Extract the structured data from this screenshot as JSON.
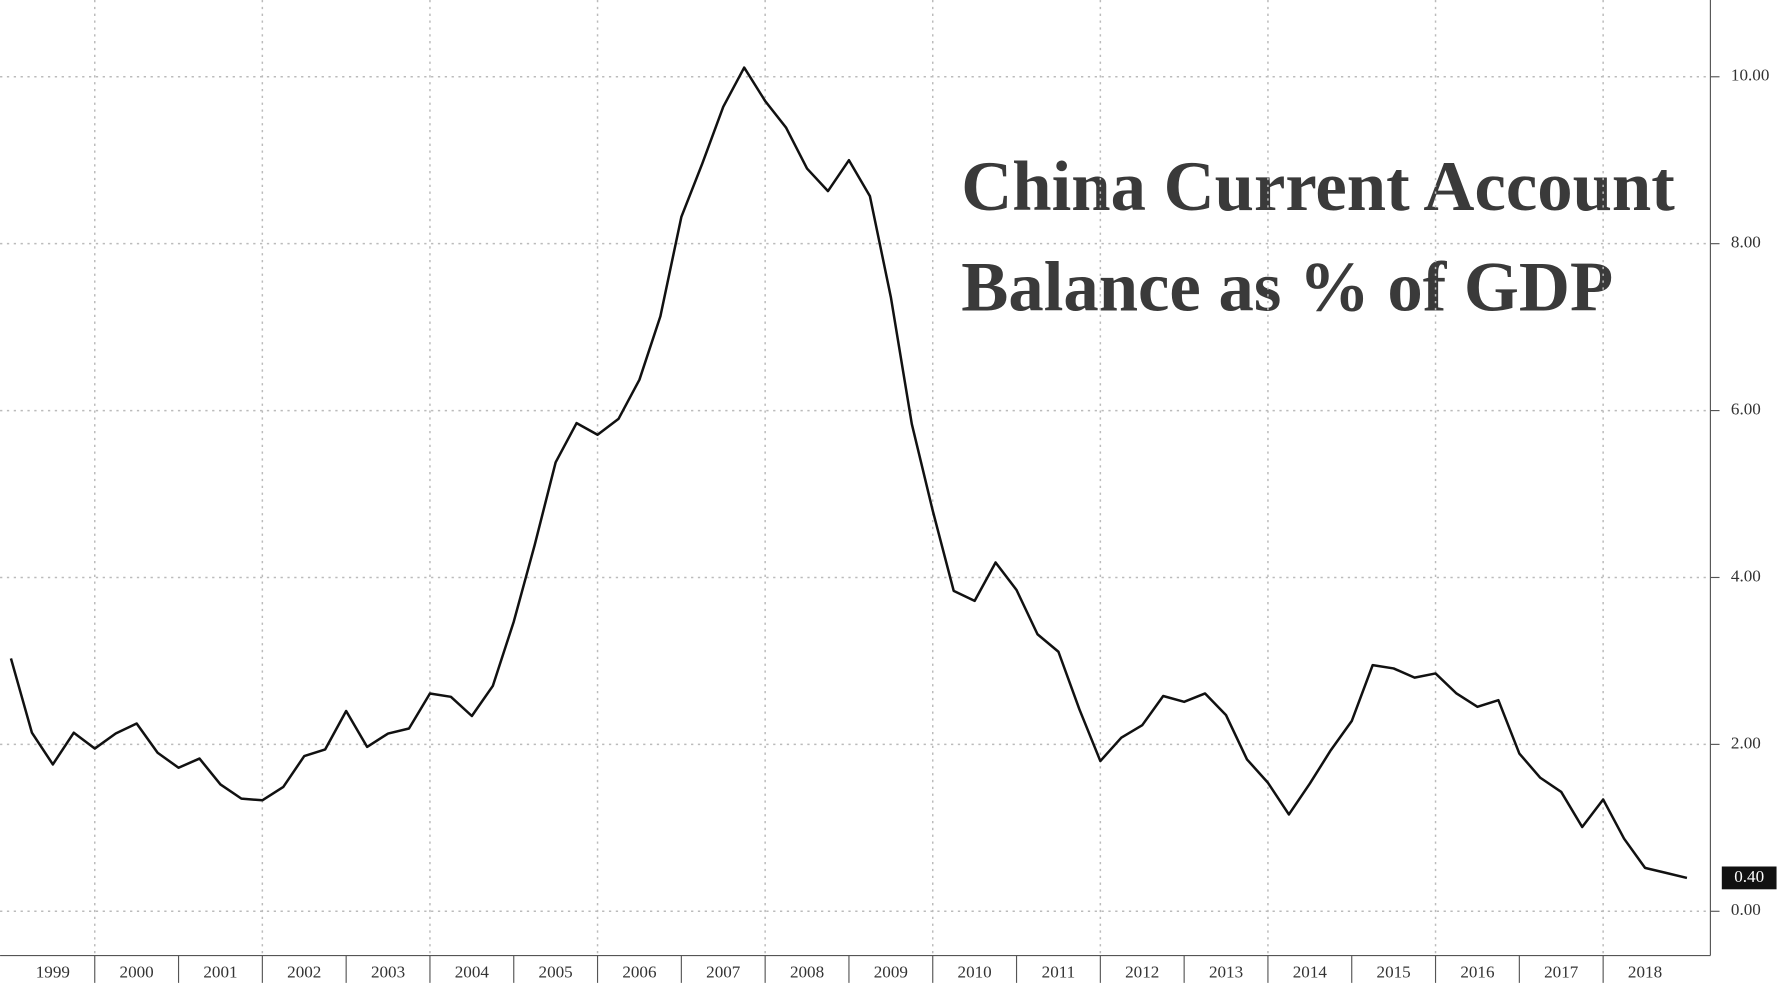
{
  "chart_data": {
    "type": "line",
    "title": [
      "China Current Account",
      "Balance as % of GDP"
    ],
    "x": [
      1999,
      1999.25,
      1999.5,
      1999.75,
      2000,
      2000.25,
      2000.5,
      2000.75,
      2001,
      2001.25,
      2001.5,
      2001.75,
      2002,
      2002.25,
      2002.5,
      2002.75,
      2003,
      2003.25,
      2003.5,
      2003.75,
      2004,
      2004.25,
      2004.5,
      2004.75,
      2005,
      2005.25,
      2005.5,
      2005.75,
      2006,
      2006.25,
      2006.5,
      2006.75,
      2007,
      2007.25,
      2007.5,
      2007.75,
      2008,
      2008.25,
      2008.5,
      2008.75,
      2009,
      2009.25,
      2009.5,
      2009.75,
      2010,
      2010.25,
      2010.5,
      2010.75,
      2011,
      2011.25,
      2011.5,
      2011.75,
      2012,
      2012.25,
      2012.5,
      2012.75,
      2013,
      2013.25,
      2013.5,
      2013.75,
      2014,
      2014.25,
      2014.5,
      2014.75,
      2015,
      2015.25,
      2015.5,
      2015.75,
      2016,
      2016.25,
      2016.5,
      2016.75,
      2017,
      2017.25,
      2017.5,
      2017.75,
      2018,
      2018.25,
      2018.5,
      2018.75,
      2019
    ],
    "series": [
      {
        "color": "#111111",
        "values": [
          3.03,
          2.14,
          1.76,
          2.14,
          1.95,
          2.13,
          2.25,
          1.9,
          1.72,
          1.83,
          1.52,
          1.35,
          1.33,
          1.49,
          1.86,
          1.94,
          2.4,
          1.97,
          2.13,
          2.19,
          2.61,
          2.57,
          2.34,
          2.7,
          3.47,
          4.39,
          5.38,
          5.85,
          5.71,
          5.9,
          6.37,
          7.13,
          8.32,
          8.96,
          9.64,
          10.11,
          9.71,
          9.39,
          8.9,
          8.63,
          9.0,
          8.57,
          7.36,
          5.84,
          4.8,
          3.84,
          3.72,
          4.18,
          3.85,
          3.32,
          3.11,
          2.42,
          1.8,
          2.08,
          2.23,
          2.58,
          2.51,
          2.61,
          2.35,
          1.82,
          1.54,
          1.16,
          1.53,
          1.93,
          2.28,
          2.95,
          2.91,
          2.8,
          2.85,
          2.61,
          2.45,
          2.53,
          1.89,
          1.6,
          1.43,
          1.01,
          1.34,
          0.87,
          0.52,
          0.46,
          0.4
        ],
        "last_label": "0.40"
      }
    ],
    "xlim": [
      1998.87,
      2019.28
    ],
    "xticks": [
      1999,
      2000,
      2001,
      2002,
      2003,
      2004,
      2005,
      2006,
      2007,
      2008,
      2009,
      2010,
      2011,
      2012,
      2013,
      2014,
      2015,
      2016,
      2017,
      2018
    ],
    "ylim": [
      -0.53,
      10.92
    ],
    "yticks": [
      {
        "value": 0,
        "label": "0.00"
      },
      {
        "value": 2,
        "label": "2.00"
      },
      {
        "value": 4,
        "label": "4.00"
      },
      {
        "value": 6,
        "label": "6.00"
      },
      {
        "value": 8,
        "label": "8.00"
      },
      {
        "value": 10,
        "label": "10.00"
      }
    ],
    "grid": true
  }
}
